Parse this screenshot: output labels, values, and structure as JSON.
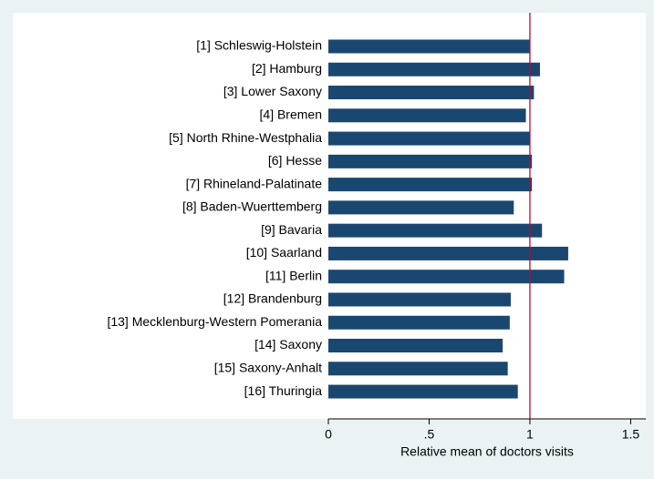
{
  "chart_data": {
    "type": "barh",
    "x_label": "Relative mean of doctors visits",
    "categories": [
      "[1] Schleswig-Holstein",
      "[2] Hamburg",
      "[3] Lower Saxony",
      "[4] Bremen",
      "[5] North Rhine-Westphalia",
      "[6] Hesse",
      "[7] Rhineland-Palatinate",
      "[8] Baden-Wuerttemberg",
      "[9] Bavaria",
      "[10] Saarland",
      "[11] Berlin",
      "[12] Brandenburg",
      "[13] Mecklenburg-Western Pomerania",
      "[14] Saxony",
      "[15] Saxony-Anhalt",
      "[16] Thuringia"
    ],
    "values": [
      1.0,
      1.05,
      1.02,
      0.98,
      1.0,
      1.01,
      1.01,
      0.92,
      1.06,
      1.19,
      1.17,
      0.905,
      0.9,
      0.865,
      0.89,
      0.94
    ],
    "color": "#1a476f",
    "xlim": [
      0,
      1.575
    ],
    "xticks": [
      0,
      {
        "value": 0.5,
        "label": ".5"
      },
      1,
      1.5
    ],
    "reference_line": 1,
    "reference_color": "#c10534"
  }
}
